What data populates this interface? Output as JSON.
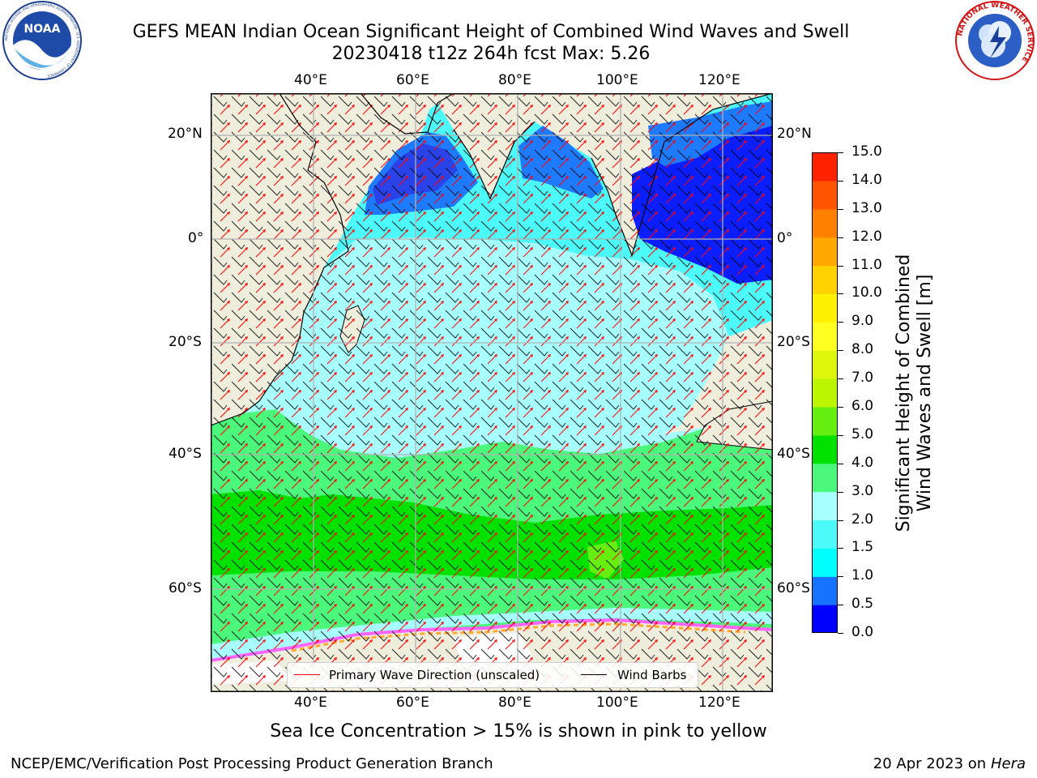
{
  "header": {
    "title_line1": "GEFS MEAN Indian Ocean Significant Height of Combined Wind Waves and Swell",
    "title_line2": "20230418 t12z 264h fcst   Max: 5.26"
  },
  "logos": {
    "left_text": "NOAA",
    "left_ring_text": "NATIONAL OCEANIC AND ATMOSPHERIC ADMINISTRATION · U.S. DEPARTMENT OF COMMERCE",
    "right_ring_text": "NATIONAL WEATHER SERVICE"
  },
  "map": {
    "lon_ticks_top": [
      "40°E",
      "60°E",
      "80°E",
      "100°E",
      "120°E"
    ],
    "lon_ticks_bottom": [
      "40°E",
      "60°E",
      "80°E",
      "100°E",
      "120°E"
    ],
    "lat_ticks_left": [
      "20°N",
      "0°",
      "20°S",
      "40°S",
      "60°S"
    ],
    "lat_ticks_right": [
      "20°N",
      "0°",
      "20°S",
      "40°S",
      "60°S"
    ],
    "land_color": "#efeddc",
    "ice_colors": [
      "#ff66ff",
      "#ffaa33",
      "#ffff66"
    ]
  },
  "colorbar": {
    "label_line1": "Significant Height of Combined",
    "label_line2": "Wind Waves and Swell [m]",
    "ticks": [
      "15.0",
      "14.0",
      "13.0",
      "12.0",
      "11.0",
      "10.0",
      "9.0",
      "8.0",
      "7.0",
      "6.0",
      "5.0",
      "4.0",
      "3.0",
      "2.0",
      "1.5",
      "1.0",
      "0.5",
      "0.0"
    ],
    "colors_bottom_to_top": [
      "#0000ff",
      "#1673ff",
      "#00ffff",
      "#4dfafa",
      "#a7ffff",
      "#4cf87c",
      "#00e100",
      "#66ee11",
      "#bbf500",
      "#ddf70b",
      "#ffff22",
      "#fff200",
      "#ffd200",
      "#ffa800",
      "#ff8000",
      "#ff5500",
      "#ff2200"
    ]
  },
  "legend": {
    "wave_direction": "Primary Wave Direction (unscaled)",
    "wind_barbs": "Wind Barbs",
    "wave_color": "#ff0000",
    "barb_color": "#000000"
  },
  "footer": {
    "ice_note": "Sea Ice Concentration > 15% is shown in pink to yellow",
    "left": "NCEP/EMC/Verification Post Processing Product Generation Branch",
    "right_prefix": "20 Apr 2023 on ",
    "right_machine": "Hera"
  }
}
